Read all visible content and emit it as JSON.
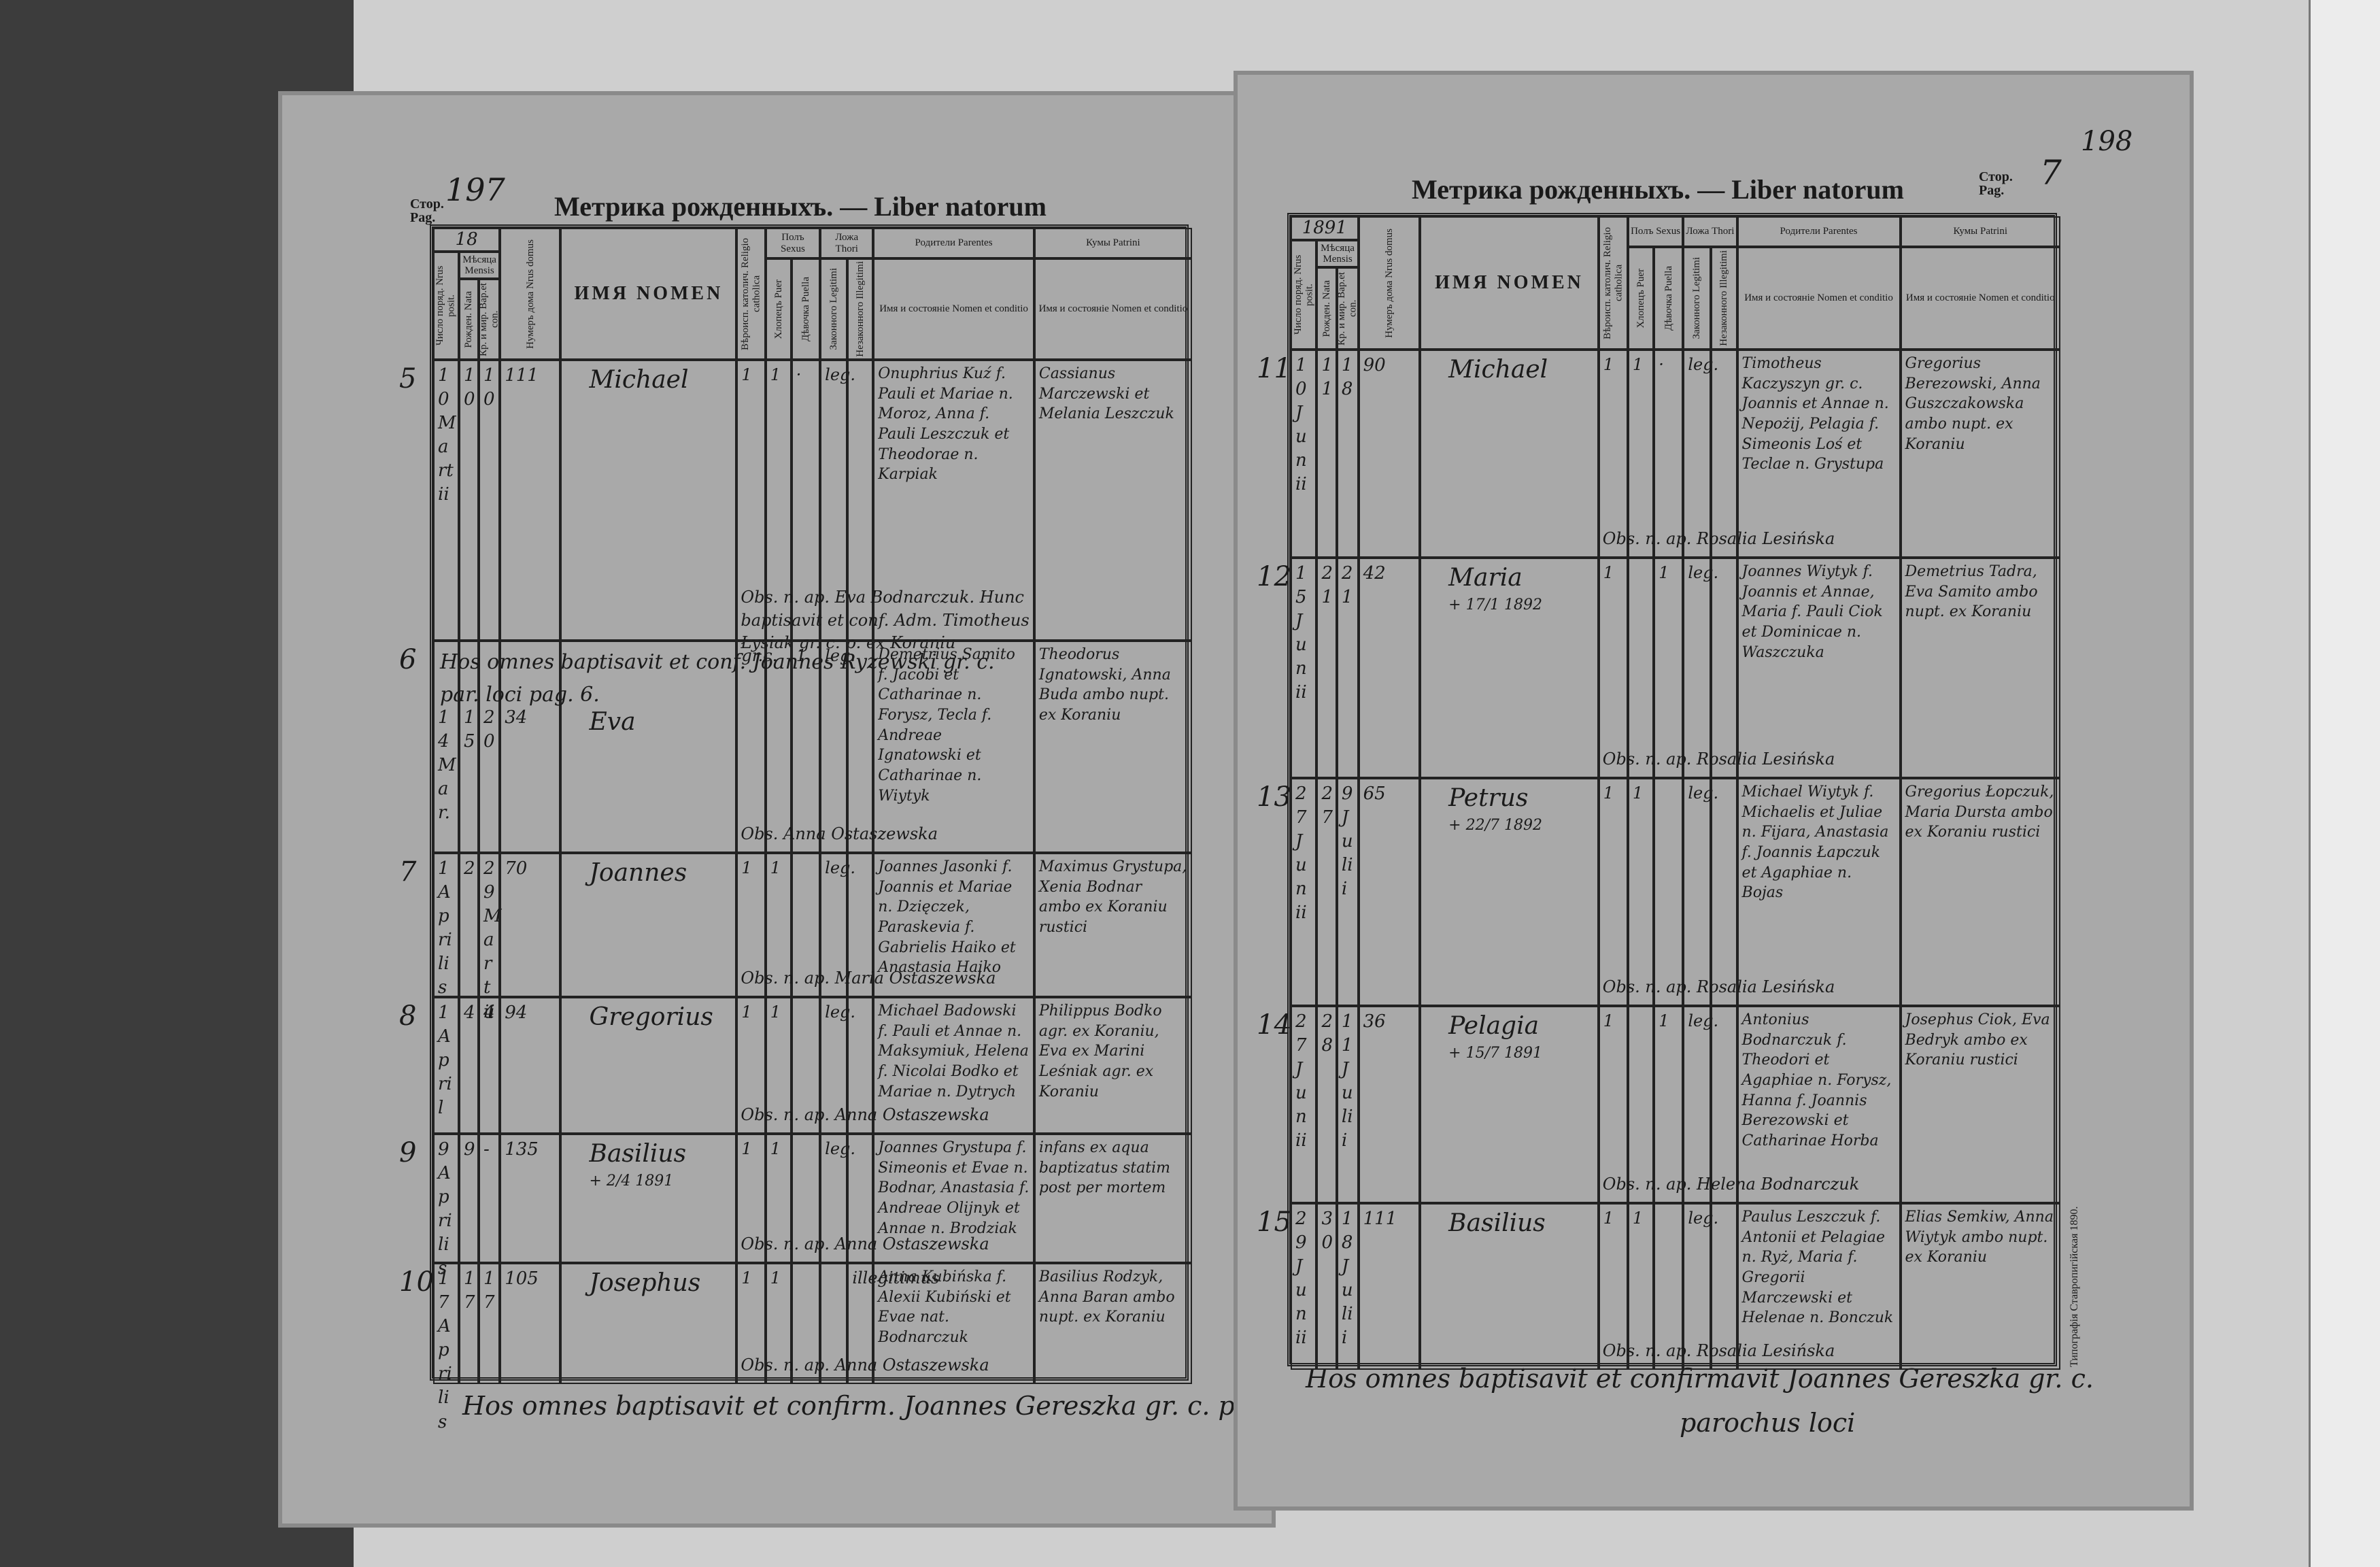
{
  "left_page": {
    "page_label": "Стор. Pag.",
    "page_number": "197",
    "title": "Метрика рожденныхъ. — Liber natorum",
    "year_prefix": "18",
    "header_groups": {
      "mensis": "Мѣсяца Mensis",
      "sexus": "Полъ Sexus",
      "thori": "Ложа Thori",
      "parentes": "Родители Parentes",
      "patrini": "Кумы Patrini"
    },
    "columns": [
      "Число поряд. Nrus posit.",
      "Рожден. Nata",
      "Кр. и мир. Bap.et con.",
      "Нумеръ дома Nrus domus",
      "ИМЯ NOMEN",
      "Вѣроисп. католич. Religio catholica",
      "Хлопецъ Puer",
      "Дѣвочка Puella",
      "Законного Legitimi",
      "Незаконного Illegitimi",
      "Имя и состояніе Nomen et conditio",
      "Имя и состояніе Nomen et conditio"
    ],
    "entries": [
      {
        "index": "5",
        "nrus_posit": "10 Martii",
        "nata": "10",
        "bapt": "10",
        "domus": "111",
        "nomen": "Michael",
        "religio": "1",
        "puer": "1",
        "puella": "·",
        "legitimi": "leg.",
        "parentes": "Onuphrius Kuź f. Pauli et Mariae n. Moroz, Anna f. Pauli Leszczuk et Theodorae n. Karpiak",
        "patrini": "Cassianus Marczewski et Melania Leszczuk",
        "note": "Obs. n. ap. Eva Bodnarczuk. Hunc baptisavit et conf. Adm. Timotheus Łysiak gr. c. p. ex Koraniu"
      },
      {
        "index": "6",
        "note_top": "Hos omnes baptisavit et conf. Joannes Ryzewski gr. c. par. loci pag. 6.",
        "nrus_posit": "14 Mar.",
        "nata": "15",
        "bapt": "20",
        "domus": "34",
        "nomen": "Eva",
        "religio": "gr.c.",
        "puella": "1",
        "legitimi": "leg.",
        "parentes": "Demetrius Samito f. Jacobi et Catharinae n. Forysz, Tecla f. Andreae Ignatowski et Catharinae n. Wiytyk",
        "patrini": "Theodorus Ignatowski, Anna Buda ambo nupt. ex Koraniu",
        "note": "Obs. Anna Ostaszewska"
      },
      {
        "index": "7",
        "nrus_posit": "1 Aprilis",
        "nata": "2",
        "bapt": "29 Martii",
        "domus": "70",
        "nomen": "Joannes",
        "religio": "1",
        "puer": "1",
        "legitimi": "leg.",
        "parentes": "Joannes Jasonki f. Joannis et Mariae n. Dzięczek, Paraskevia f. Gabrielis Haiko et Anastasia Haiko",
        "patrini": "Maximus Grystupa, Xenia Bodnar ambo ex Koraniu rustici",
        "note": "Obs. n. ap. Maria Ostaszewska"
      },
      {
        "index": "8",
        "nrus_posit": "1 April",
        "nata": "4",
        "bapt": "4",
        "domus": "94",
        "nomen": "Gregorius",
        "religio": "1",
        "puer": "1",
        "legitimi": "leg.",
        "parentes": "Michael Badowski f. Pauli et Annae n. Maksymiuk, Helena f. Nicolai Bodko et Mariae n. Dytrych",
        "patrini": "Philippus Bodko agr. ex Koraniu, Eva ex Marini Leśniak agr. ex Koraniu",
        "note": "Obs. n. ap. Anna Ostaszewska"
      },
      {
        "index": "9",
        "nrus_posit": "9 Aprilis",
        "nata": "9",
        "bapt": "-",
        "domus": "135",
        "nomen": "Basilius",
        "obitus": "+ 2/4 1891",
        "religio": "1",
        "puer": "1",
        "legitimi": "leg.",
        "parentes": "Joannes Grystupa f. Simeonis et Evae n. Bodnar, Anastasia f. Andreae Olijnyk et Annae n. Brodziak",
        "patrini": "infans ex aqua baptizatus statim post per mortem",
        "note": "Obs. n. ap. Anna Ostaszewska"
      },
      {
        "index": "10",
        "nrus_posit": "17 Aprilis",
        "nata": "17",
        "bapt": "17",
        "domus": "105",
        "nomen": "Josephus",
        "religio": "1",
        "puer": "1",
        "illegitimi": "illegitimus",
        "parentes": "Anna Kubińska f. Alexii Kubiński et Evae nat. Bodnarczuk",
        "patrini": "Basilius Rodzyk, Anna Baran ambo nupt. ex Koraniu",
        "note": "Obs. n. ap. Anna Ostaszewska"
      }
    ],
    "footer": "Hos omnes baptisavit et confirm. Joannes Gereszka gr. c. parochus loci"
  },
  "right_page": {
    "page_label": "Стор. Pag.",
    "page_number": "7",
    "sheet_number": "198",
    "title": "Метрика рожденныхъ. — Liber natorum",
    "year_prefix": "1891",
    "header_groups": {
      "mensis": "Мѣсяца Mensis",
      "sexus": "Полъ Sexus",
      "thori": "Ложа Thori",
      "parentes": "Родители Parentes",
      "patrini": "Кумы Patrini"
    },
    "columns": [
      "Число поряд. Nrus posit.",
      "Рожден. Nata",
      "Кр. и мир. Bap.et con.",
      "Нумеръ дома Nrus domus",
      "ИМЯ NOMEN",
      "Вѣроисп. католич. Religio catholica",
      "Хлопецъ Puer",
      "Дѣвочка Puella",
      "Законного Legitimi",
      "Незаконного Illegitimi",
      "Имя и состояніе Nomen et conditio",
      "Имя и состояніе Nomen et conditio"
    ],
    "entries": [
      {
        "index": "11",
        "nrus_posit": "10 Junii",
        "nata": "11",
        "bapt": "18",
        "domus": "90",
        "nomen": "Michael",
        "religio": "1",
        "puer": "1",
        "puella": "·",
        "legitimi": "leg.",
        "parentes": "Timotheus Kaczyszyn gr. c. Joannis et Annae n. Nepożij, Pelagia f. Simeonis Loś et Teclae n. Grystupa",
        "patrini": "Gregorius Berezowski, Anna Guszczakowska ambo nupt. ex Koraniu",
        "note": "Obs. n. ap. Rosalia Lesińska"
      },
      {
        "index": "12",
        "nrus_posit": "15 Junii",
        "nata": "21",
        "bapt": "21",
        "domus": "42",
        "nomen": "Maria",
        "obitus": "+ 17/1 1892",
        "religio": "1",
        "puella": "1",
        "legitimi": "leg.",
        "parentes": "Joannes Wiytyk f. Joannis et Annae, Maria f. Pauli Ciok et Dominicae n. Waszczuka",
        "patrini": "Demetrius Tadra, Eva Samito ambo nupt. ex Koraniu",
        "note": "Obs. n. ap. Rosalia Lesińska"
      },
      {
        "index": "13",
        "nrus_posit": "27 Junii",
        "nata": "27",
        "bapt": "9 Julii",
        "domus": "65",
        "nomen": "Petrus",
        "obitus": "+ 22/7 1892",
        "religio": "1",
        "puer": "1",
        "legitimi": "leg.",
        "parentes": "Michael Wiytyk f. Michaelis et Juliae n. Fijara, Anastasia f. Joannis Łapczuk et Agaphiae n. Bojas",
        "patrini": "Gregorius Łopczuk, Maria Dursta ambo ex Koraniu rustici",
        "note": "Obs. n. ap. Rosalia Lesińska"
      },
      {
        "index": "14",
        "nrus_posit": "27 Junii",
        "nata": "28",
        "bapt": "11 Julii",
        "domus": "36",
        "nomen": "Pelagia",
        "obitus": "+ 15/7 1891",
        "religio": "1",
        "puella": "1",
        "legitimi": "leg.",
        "parentes": "Antonius Bodnarczuk f. Theodori et Agaphiae n. Forysz, Hanna f. Joannis Berezowski et Catharinae Horba",
        "patrini": "Josephus Ciok, Eva Bedryk ambo ex Koraniu rustici",
        "note": "Obs. n. ap. Helena Bodnarczuk"
      },
      {
        "index": "15",
        "nrus_posit": "29 Junii",
        "nata": "30",
        "bapt": "18 Julii",
        "domus": "111",
        "nomen": "Basilius",
        "religio": "1",
        "puer": "1",
        "legitimi": "leg.",
        "parentes": "Paulus Leszczuk f. Antonii et Pelagiae n. Ryż, Maria f. Gregorii Marczewski et Helenae n. Bonczuk",
        "patrini": "Elias Semkiw, Anna Wiytyk ambo nupt. ex Koraniu",
        "note": "Obs. n. ap. Rosalia Lesińska"
      }
    ],
    "footer": "Hos omnes baptisavit et confirmavit Joannes Gereszka gr. c.",
    "footer_2": "parochus loci",
    "imprint": "Типографія Ставропигійская 1890."
  }
}
